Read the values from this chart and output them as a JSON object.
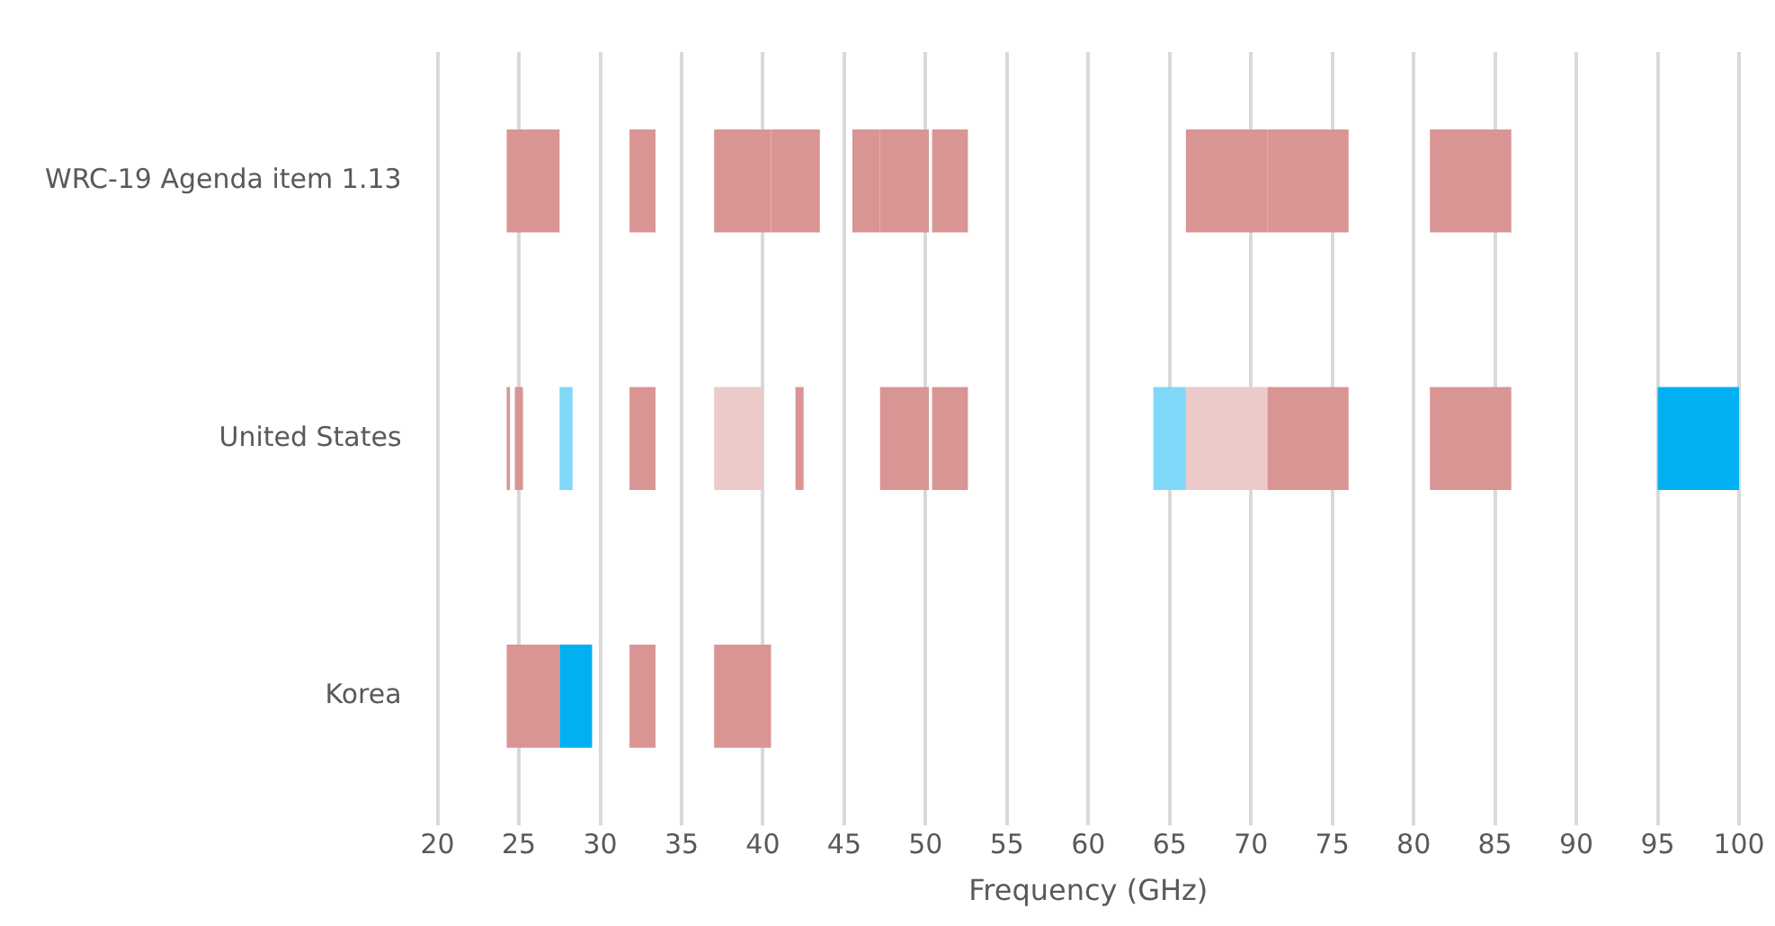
{
  "chart_data": {
    "type": "bar",
    "orientation": "horizontal",
    "xlabel": "Frequency (GHz)",
    "categories": [
      "WRC-19 Agenda item 1.13",
      "United States",
      "Korea"
    ],
    "xlim": [
      20,
      100
    ],
    "xticks": [
      20,
      25,
      30,
      35,
      40,
      45,
      50,
      55,
      60,
      65,
      70,
      75,
      80,
      85,
      90,
      95,
      100
    ],
    "grid": "x",
    "legend": false,
    "series": [
      {
        "color": "#d99594",
        "base": [
          24.25,
          24.25,
          24.25
        ],
        "values": [
          3.25,
          0.2,
          3.25
        ]
      },
      {
        "color": "#d99594",
        "base": [
          null,
          24.75,
          null
        ],
        "values": [
          null,
          0.5,
          null
        ]
      },
      {
        "color": "#80d8f8",
        "base": [
          null,
          27.5,
          null
        ],
        "values": [
          null,
          0.8,
          null
        ]
      },
      {
        "color": "#00b0f0",
        "base": [
          null,
          null,
          27.5
        ],
        "values": [
          null,
          null,
          2
        ]
      },
      {
        "color": "#d99594",
        "base": [
          31.8,
          31.8,
          31.8
        ],
        "values": [
          1.6,
          1.6,
          1.6
        ]
      },
      {
        "color": "#d99594",
        "base": [
          37,
          null,
          37
        ],
        "values": [
          3.5,
          null,
          3.5
        ]
      },
      {
        "color": "#eccaca",
        "base": [
          null,
          37,
          null
        ],
        "values": [
          null,
          3,
          null
        ]
      },
      {
        "color": "#d99594",
        "base": [
          40.5,
          42,
          null
        ],
        "values": [
          3,
          0.5,
          null
        ]
      },
      {
        "color": "#d99594",
        "base": [
          45.5,
          null,
          null
        ],
        "values": [
          1.7,
          null,
          null
        ]
      },
      {
        "color": "#d99594",
        "base": [
          47.2,
          47.2,
          null
        ],
        "values": [
          3,
          3,
          null
        ]
      },
      {
        "color": "#d99594",
        "base": [
          50.4,
          50.4,
          null
        ],
        "values": [
          2.2,
          2.2,
          null
        ]
      },
      {
        "color": "#80d8f8",
        "base": [
          null,
          64,
          null
        ],
        "values": [
          null,
          2,
          null
        ]
      },
      {
        "color": "#d99594",
        "base": [
          66,
          null,
          null
        ],
        "values": [
          5,
          null,
          null
        ]
      },
      {
        "color": "#eccaca",
        "base": [
          null,
          66,
          null
        ],
        "values": [
          null,
          5,
          null
        ]
      },
      {
        "color": "#d99594",
        "base": [
          71,
          71,
          null
        ],
        "values": [
          5,
          5,
          null
        ]
      },
      {
        "color": "#d99594",
        "base": [
          81,
          81,
          null
        ],
        "values": [
          5,
          5,
          null
        ]
      },
      {
        "color": "#00b0f0",
        "base": [
          null,
          95,
          null
        ],
        "values": [
          null,
          5,
          null
        ]
      }
    ]
  }
}
